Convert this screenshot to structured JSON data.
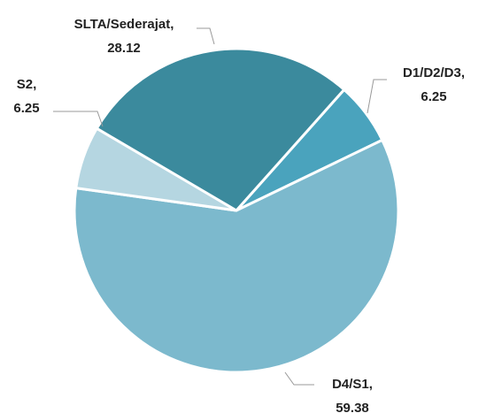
{
  "chart_data": {
    "type": "pie",
    "categories": [
      "D1/D2/D3",
      "D4/S1",
      "S2",
      "SLTA/Sederajat"
    ],
    "values": [
      6.25,
      59.38,
      6.25,
      28.12
    ],
    "colors": [
      "#4aa3bd",
      "#7cb9cd",
      "#b5d6e1",
      "#3b8a9d"
    ]
  }
}
